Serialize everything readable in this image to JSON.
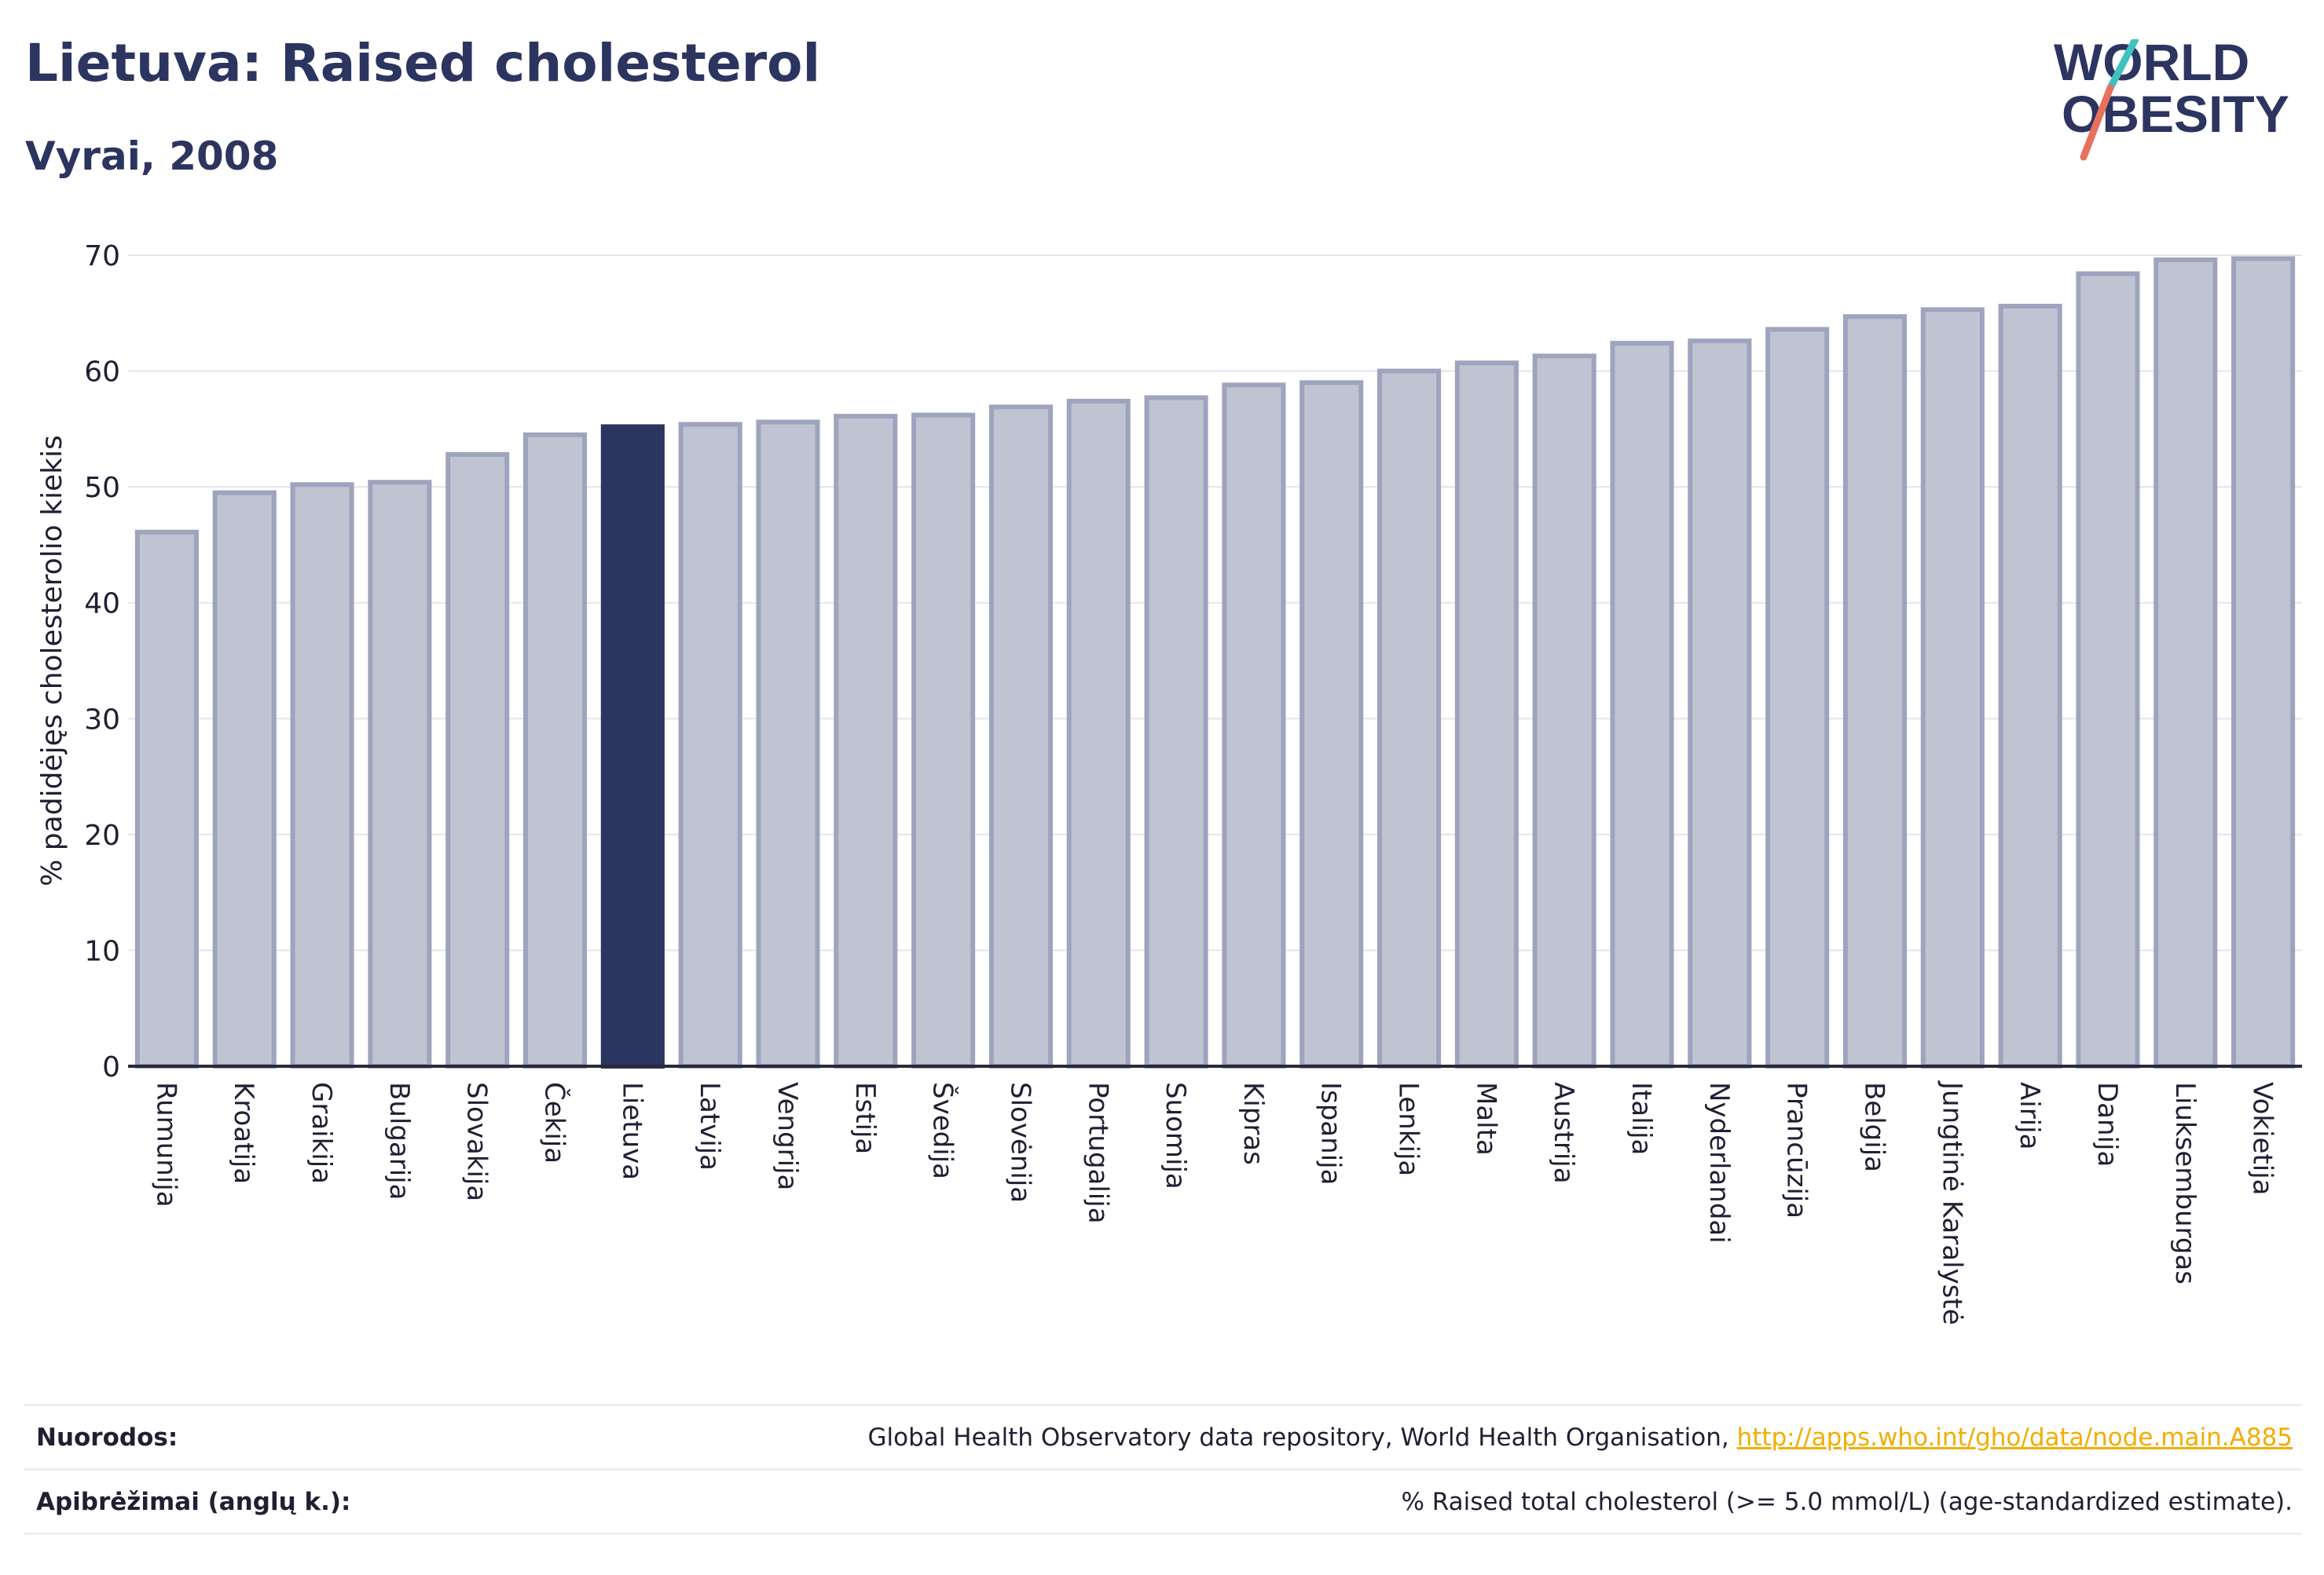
{
  "header": {
    "title": "Lietuva: Raised cholesterol",
    "subtitle": "Vyrai, 2008",
    "logo_line1": "WORLD",
    "logo_line2": "OBESITY"
  },
  "colors": {
    "highlight": "#2a3560",
    "bar_fill": "#c0c4d2",
    "bar_stroke": "#9ea4bd",
    "axis": "#2a2a3a"
  },
  "chart_data": {
    "type": "bar",
    "ylabel": "% padidėjęs cholesterolio kiekis",
    "xlabel": "",
    "ylim": [
      0,
      70
    ],
    "yticks": [
      0,
      10,
      20,
      30,
      40,
      50,
      60,
      70
    ],
    "grid": true,
    "highlight": "Lietuva",
    "categories": [
      "Rumunija",
      "Kroatija",
      "Graikija",
      "Bulgarija",
      "Slovakija",
      "Čekija",
      "Lietuva",
      "Latvija",
      "Vengrija",
      "Estija",
      "Švedija",
      "Slovėnija",
      "Portugalija",
      "Suomija",
      "Kipras",
      "Ispanija",
      "Lenkija",
      "Malta",
      "Austrija",
      "Italija",
      "Nyderlandai",
      "Prancūzija",
      "Belgija",
      "Jungtinė Karalystė",
      "Airija",
      "Danija",
      "Liuksemburgas",
      "Vokietija"
    ],
    "values": [
      46.1,
      49.5,
      50.2,
      50.4,
      52.8,
      54.5,
      55.2,
      55.4,
      55.6,
      56.1,
      56.2,
      56.9,
      57.4,
      57.7,
      58.8,
      59.0,
      60.0,
      60.7,
      61.3,
      62.4,
      62.6,
      63.6,
      64.7,
      65.3,
      65.6,
      68.4,
      69.6,
      69.7
    ]
  },
  "footer": {
    "sources_label": "Nuorodos:",
    "sources_text": "Global Health Observatory data repository, World Health Organisation, ",
    "sources_link": "http://apps.who.int/gho/data/node.main.A885",
    "definitions_label": "Apibrėžimai (anglų k.):",
    "definitions_text": "% Raised total cholesterol (>= 5.0 mmol/L) (age-standardized estimate)."
  }
}
